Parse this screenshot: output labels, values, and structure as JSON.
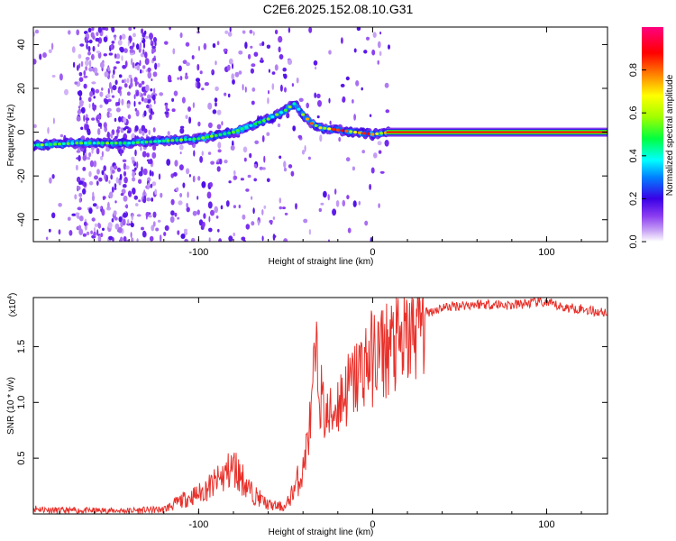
{
  "chart_data": [
    {
      "type": "heatmap",
      "title": "C2E6.2025.152.08.10.G31",
      "xlabel": "Height of straight line (km)",
      "ylabel": "Frequency (Hz)",
      "xlim": [
        -195,
        135
      ],
      "ylim": [
        -50,
        48
      ],
      "xticks": [
        -100,
        0,
        100
      ],
      "yticks": [
        -40,
        -20,
        0,
        20,
        40
      ],
      "colorbar": {
        "label": "Normalized spectral amplitude",
        "range": [
          0,
          1
        ],
        "ticks": [
          0.0,
          0.2,
          0.4,
          0.6,
          0.8
        ],
        "colors": [
          "#ffffff",
          "#b07cf0",
          "#3a00e6",
          "#0080ff",
          "#00ffff",
          "#00ff40",
          "#a0ff00",
          "#ffff00",
          "#ff8000",
          "#ff0000",
          "#ff0080"
        ]
      },
      "ridge": {
        "x": [
          -195,
          -170,
          -140,
          -120,
          -100,
          -80,
          -60,
          -50,
          -45,
          -40,
          -35,
          -30,
          -20,
          -10,
          0,
          10,
          50,
          100,
          135
        ],
        "y": [
          -6,
          -5,
          -5,
          -4,
          -3,
          0,
          6,
          10,
          13,
          8,
          4,
          2,
          1,
          0,
          -1,
          0,
          0,
          0,
          0
        ]
      }
    },
    {
      "type": "line",
      "xlabel": "Height of straight line (km)",
      "ylabel": "SNR (10 * v/v)",
      "yscale_label": "(x10",
      "yscale_exp": "4",
      "xlim": [
        -195,
        135
      ],
      "ylim": [
        0,
        19400
      ],
      "xticks": [
        -100,
        0,
        100
      ],
      "yticks": [
        0.5,
        1.0,
        1.5
      ],
      "ytick_labels": [
        "0.5",
        "1.0",
        "1.5"
      ],
      "color": "#e8302a",
      "series": [
        {
          "x": [
            -195,
            -180,
            -160,
            -140,
            -120,
            -110,
            -100,
            -90,
            -85,
            -80,
            -75,
            -70,
            -60,
            -50,
            -40,
            -35,
            -33,
            -30,
            -28,
            -25,
            -20,
            -15,
            -10,
            -5,
            0,
            5,
            10,
            15,
            20,
            25,
            30,
            40,
            50,
            60,
            70,
            80,
            90,
            95,
            100,
            110,
            120,
            130,
            135
          ],
          "y": [
            500,
            300,
            300,
            300,
            400,
            1200,
            1800,
            2800,
            3500,
            4200,
            3200,
            2000,
            800,
            600,
            4000,
            9000,
            14000,
            11000,
            9000,
            8500,
            10000,
            11000,
            12000,
            13500,
            14000,
            14500,
            15000,
            15000,
            15500,
            17000,
            18000,
            18500,
            18700,
            18800,
            18800,
            18700,
            18900,
            19000,
            18900,
            18500,
            18400,
            18100,
            18100
          ]
        }
      ]
    }
  ]
}
